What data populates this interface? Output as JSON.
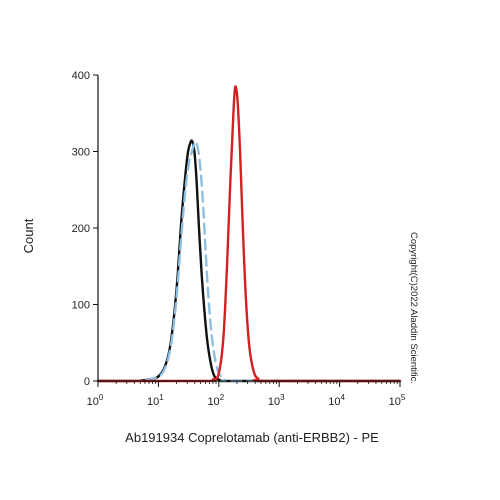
{
  "chart_data": {
    "type": "line",
    "xscale": "log",
    "xlabel": "Ab191934 Coprelotamab (anti-ERBB2) - PE",
    "ylabel": "Count",
    "xlim": [
      1,
      100000
    ],
    "ylim": [
      0,
      400
    ],
    "x_ticks": [
      {
        "value": 1,
        "base": "10",
        "exp": "0"
      },
      {
        "value": 10,
        "base": "10",
        "exp": "1"
      },
      {
        "value": 100,
        "base": "10",
        "exp": "2"
      },
      {
        "value": 1000,
        "base": "10",
        "exp": "3"
      },
      {
        "value": 10000,
        "base": "10",
        "exp": "4"
      },
      {
        "value": 100000,
        "base": "10",
        "exp": "5"
      }
    ],
    "y_ticks": [
      "0",
      "100",
      "200",
      "300",
      "400"
    ],
    "y_tick_values": [
      0,
      100,
      200,
      300,
      400
    ],
    "grid": false,
    "watermark": "Copyright(C)2022 Aladdin Scientific.",
    "series": [
      {
        "color": "#111111",
        "dash": "solid",
        "x": [
          1,
          4,
          7,
          10,
          13,
          16,
          20,
          24,
          28,
          31,
          34,
          36,
          38,
          40,
          43,
          47,
          52,
          58,
          65,
          75,
          85,
          100,
          120,
          200,
          100000
        ],
        "y": [
          0,
          0,
          2,
          6,
          20,
          50,
          120,
          210,
          270,
          300,
          312,
          314,
          308,
          295,
          260,
          200,
          140,
          90,
          50,
          20,
          6,
          2,
          0,
          0,
          0
        ]
      },
      {
        "color": "#8fbfe0",
        "dash": "dashed",
        "x": [
          1,
          4,
          8,
          12,
          16,
          20,
          24,
          28,
          32,
          36,
          40,
          43,
          46,
          50,
          55,
          60,
          66,
          73,
          82,
          95,
          110,
          130,
          200,
          100000
        ],
        "y": [
          0,
          0,
          3,
          12,
          45,
          110,
          190,
          250,
          285,
          300,
          312,
          310,
          300,
          275,
          230,
          175,
          120,
          75,
          40,
          15,
          5,
          1,
          0,
          0
        ]
      },
      {
        "color": "#d42020",
        "dash": "solid",
        "x": [
          1,
          60,
          80,
          100,
          120,
          140,
          155,
          170,
          180,
          190,
          205,
          225,
          250,
          280,
          320,
          380,
          450,
          600,
          100000
        ],
        "y": [
          0,
          0,
          2,
          10,
          60,
          170,
          260,
          330,
          370,
          385,
          365,
          300,
          200,
          110,
          45,
          12,
          3,
          0,
          0
        ]
      }
    ]
  }
}
